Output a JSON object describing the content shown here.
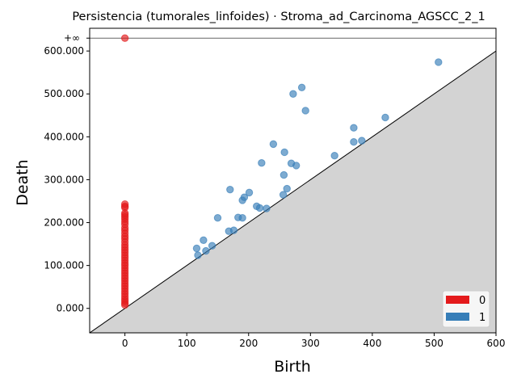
{
  "chart_data": {
    "type": "scatter",
    "title": "Persistencia (tumorales_linfoides) · Stroma_ad_Carcinoma_AGSCC_2_1",
    "xlabel": "Birth",
    "ylabel": "Death",
    "xlim": [
      -57,
      600
    ],
    "ylim": [
      -57,
      653
    ],
    "xticks": [
      0,
      100,
      200,
      300,
      400,
      500,
      600
    ],
    "yticks": [
      0,
      100,
      200,
      300,
      400,
      500,
      600
    ],
    "ytick_labels": [
      "0.000",
      "100.000",
      "200.000",
      "300.000",
      "400.000",
      "500.000",
      "600.000"
    ],
    "inf_label": "+∞",
    "inf_value": 630,
    "diagonal": true,
    "legend_position": "lower right",
    "series": [
      {
        "name": "0",
        "color": "#e41a1c",
        "points": [
          [
            0,
            630
          ],
          [
            0,
            243
          ],
          [
            0,
            238
          ],
          [
            0,
            235
          ],
          [
            0,
            222
          ],
          [
            0,
            218
          ],
          [
            0,
            213
          ],
          [
            0,
            208
          ],
          [
            0,
            202
          ],
          [
            0,
            196
          ],
          [
            0,
            188
          ],
          [
            0,
            182
          ],
          [
            0,
            175
          ],
          [
            0,
            168
          ],
          [
            0,
            162
          ],
          [
            0,
            155
          ],
          [
            0,
            148
          ],
          [
            0,
            142
          ],
          [
            0,
            136
          ],
          [
            0,
            130
          ],
          [
            0,
            124
          ],
          [
            0,
            118
          ],
          [
            0,
            112
          ],
          [
            0,
            106
          ],
          [
            0,
            100
          ],
          [
            0,
            94
          ],
          [
            0,
            88
          ],
          [
            0,
            82
          ],
          [
            0,
            76
          ],
          [
            0,
            70
          ],
          [
            0,
            64
          ],
          [
            0,
            58
          ],
          [
            0,
            52
          ],
          [
            0,
            46
          ],
          [
            0,
            40
          ],
          [
            0,
            34
          ],
          [
            0,
            28
          ],
          [
            0,
            22
          ],
          [
            0,
            17
          ],
          [
            0,
            12
          ],
          [
            0,
            8
          ]
        ]
      },
      {
        "name": "1",
        "color": "#377eb8",
        "points": [
          [
            507,
            574
          ],
          [
            286,
            515
          ],
          [
            272,
            500
          ],
          [
            292,
            461
          ],
          [
            421,
            445
          ],
          [
            370,
            421
          ],
          [
            383,
            391
          ],
          [
            370,
            388
          ],
          [
            240,
            383
          ],
          [
            258,
            364
          ],
          [
            339,
            356
          ],
          [
            269,
            338
          ],
          [
            221,
            339
          ],
          [
            277,
            333
          ],
          [
            257,
            311
          ],
          [
            262,
            279
          ],
          [
            170,
            277
          ],
          [
            201,
            270
          ],
          [
            256,
            265
          ],
          [
            193,
            259
          ],
          [
            190,
            252
          ],
          [
            213,
            238
          ],
          [
            218,
            234
          ],
          [
            229,
            233
          ],
          [
            150,
            211
          ],
          [
            183,
            212
          ],
          [
            190,
            211
          ],
          [
            176,
            182
          ],
          [
            168,
            180
          ],
          [
            127,
            159
          ],
          [
            116,
            140
          ],
          [
            141,
            146
          ],
          [
            131,
            134
          ],
          [
            118,
            124
          ]
        ]
      }
    ]
  }
}
